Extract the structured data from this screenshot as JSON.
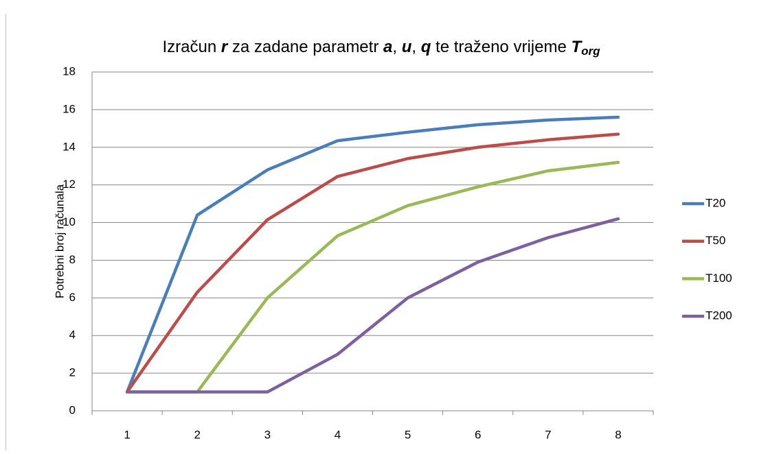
{
  "chart_data": {
    "type": "line",
    "title": [
      {
        "text": "Izračun ",
        "style": "normal"
      },
      {
        "text": "r",
        "style": "bold-italic"
      },
      {
        "text": " za zadane parametr ",
        "style": "normal"
      },
      {
        "text": "a",
        "style": "bold-italic"
      },
      {
        "text": ", ",
        "style": "normal"
      },
      {
        "text": "u",
        "style": "bold-italic"
      },
      {
        "text": ", ",
        "style": "normal"
      },
      {
        "text": "q",
        "style": "bold-italic"
      },
      {
        "text": " te traženo vrijeme ",
        "style": "normal"
      },
      {
        "text": "T",
        "style": "bold-italic"
      },
      {
        "text": "org",
        "style": "bold-italic-subscript"
      }
    ],
    "y_label": "Potrebni broj računala",
    "categories": [
      "1",
      "2",
      "3",
      "4",
      "5",
      "6",
      "7",
      "8"
    ],
    "series": [
      {
        "name": "T20",
        "color": "#4a7ebb",
        "values": [
          1,
          10.4,
          12.8,
          14.35,
          14.8,
          15.2,
          15.45,
          15.6
        ]
      },
      {
        "name": "T50",
        "color": "#be4b48",
        "values": [
          1,
          6.3,
          10.15,
          12.45,
          13.4,
          14.0,
          14.4,
          14.7
        ]
      },
      {
        "name": "T100",
        "color": "#98b954",
        "values": [
          1,
          1,
          6,
          9.3,
          10.9,
          11.9,
          12.75,
          13.2
        ]
      },
      {
        "name": "T200",
        "color": "#7d60a0",
        "values": [
          1,
          1,
          1,
          3,
          6,
          7.9,
          9.2,
          10.2
        ]
      }
    ],
    "ylim": [
      0,
      18
    ],
    "yticks": [
      0,
      2,
      4,
      6,
      8,
      10,
      12,
      14,
      16,
      18
    ],
    "grid": true,
    "legend": "right"
  }
}
